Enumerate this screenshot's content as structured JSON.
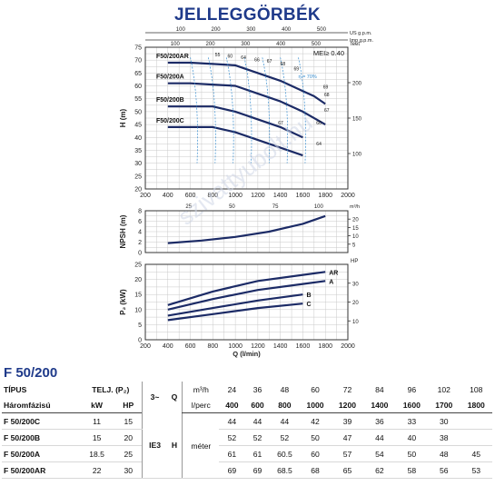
{
  "title": "JELLEGGÖRBÉK",
  "watermark": "szivattyubolt.hu",
  "colors": {
    "curve": "#1c2b66",
    "accent": "#1f3a8a",
    "eff": "#3a8fd0",
    "grid": "#c9c9c9"
  },
  "model_label": "F 50/200",
  "chart_data": [
    {
      "type": "line",
      "name": "H",
      "ylabel": "H (m)",
      "ylabel_right": "feet",
      "top_axis_usgpm_label": "US g.p.m.",
      "top_axis_impgpm_label": "Imp g.p.m.",
      "top_ticks": [
        "100",
        "200",
        "300",
        "400",
        "500"
      ],
      "mei_label": "MEI≥ 0.40",
      "eta_label": "η = 70%",
      "xlim": [
        200,
        2000
      ],
      "ylim": [
        20,
        75
      ],
      "x_ticks": [
        200,
        400,
        600,
        800,
        1000,
        1200,
        1400,
        1600,
        1800,
        2000
      ],
      "y_ticks": [
        20,
        25,
        30,
        35,
        40,
        45,
        50,
        55,
        60,
        65,
        70,
        75
      ],
      "y_right_ticks": [
        100,
        150,
        200
      ],
      "grid": true,
      "series": [
        {
          "name": "F50/200AR",
          "x": [
            400,
            600,
            800,
            1000,
            1200,
            1400,
            1600,
            1700,
            1800
          ],
          "values": [
            69,
            69,
            68.5,
            68,
            65,
            62,
            58,
            56,
            53
          ]
        },
        {
          "name": "F50/200A",
          "x": [
            400,
            600,
            800,
            1000,
            1200,
            1400,
            1600,
            1800
          ],
          "values": [
            61,
            61,
            60.5,
            60,
            57,
            54,
            50,
            45
          ]
        },
        {
          "name": "F50/200B",
          "x": [
            400,
            600,
            800,
            1000,
            1200,
            1400,
            1600
          ],
          "values": [
            52,
            52,
            52,
            50,
            47,
            44,
            40
          ]
        },
        {
          "name": "F50/200C",
          "x": [
            400,
            600,
            800,
            1000,
            1200,
            1400,
            1600
          ],
          "values": [
            44,
            44,
            44,
            42,
            39,
            36,
            33
          ]
        }
      ],
      "eff_labels": [
        "55",
        "60",
        "64",
        "66",
        "67",
        "68",
        "69",
        "69",
        "68",
        "67",
        "67",
        "66",
        "64"
      ]
    },
    {
      "type": "line",
      "name": "NPSH",
      "ylabel": "NPSH (m)",
      "xlabel_top_unit": "m³/h",
      "top_ticks": [
        "25",
        "50",
        "75",
        "100"
      ],
      "xlim": [
        200,
        2000
      ],
      "ylim": [
        0,
        8
      ],
      "y_ticks": [
        0,
        2,
        4,
        6,
        8
      ],
      "y_right_ticks": [
        5,
        10,
        15,
        20
      ],
      "grid": true,
      "series": [
        {
          "name": "NPSH",
          "x": [
            400,
            700,
            1000,
            1300,
            1600,
            1800
          ],
          "values": [
            1.8,
            2.3,
            3.0,
            4.0,
            5.5,
            7.0
          ]
        }
      ]
    },
    {
      "type": "line",
      "name": "P2",
      "ylabel": "P₂ (kW)",
      "ylabel_right": "HP",
      "xlabel": "Q (l/min)",
      "xlim": [
        200,
        2000
      ],
      "ylim": [
        0,
        25
      ],
      "x_ticks": [
        200,
        400,
        600,
        800,
        1000,
        1200,
        1400,
        1600,
        1800,
        2000
      ],
      "y_ticks": [
        0,
        5,
        10,
        15,
        20,
        25
      ],
      "y_right_ticks": [
        10,
        20,
        30
      ],
      "grid": true,
      "series": [
        {
          "name": "AR",
          "x": [
            400,
            800,
            1200,
            1600,
            1800
          ],
          "values": [
            11.5,
            16,
            19.5,
            21.5,
            22.5
          ]
        },
        {
          "name": "A",
          "x": [
            400,
            800,
            1200,
            1600,
            1800
          ],
          "values": [
            10,
            13.5,
            16.5,
            18.5,
            19.5
          ]
        },
        {
          "name": "B",
          "x": [
            400,
            800,
            1200,
            1600
          ],
          "values": [
            8,
            10.5,
            13,
            15
          ]
        },
        {
          "name": "C",
          "x": [
            400,
            800,
            1200,
            1600
          ],
          "values": [
            6.5,
            8.5,
            10.5,
            12
          ]
        }
      ]
    },
    {
      "type": "table",
      "headers": {
        "tipus": "TÍPUS",
        "haromfazisu": "Háromfázisú",
        "telj": "TELJ. (P₂)",
        "kw": "kW",
        "hp": "HP",
        "phase": "3~",
        "q": "Q",
        "ie": "IE3",
        "m3h_unit": "m³/h",
        "lperc_unit": "l/perc",
        "h": "H",
        "meter": "méter"
      },
      "m3h": [
        "24",
        "36",
        "48",
        "60",
        "72",
        "84",
        "96",
        "102",
        "108"
      ],
      "lperc": [
        "400",
        "600",
        "800",
        "1000",
        "1200",
        "1400",
        "1600",
        "1700",
        "1800"
      ],
      "rows": [
        {
          "model": "F 50/200C",
          "kw": "11",
          "hp": "15",
          "h": [
            "44",
            "44",
            "44",
            "42",
            "39",
            "36",
            "33",
            "30",
            ""
          ]
        },
        {
          "model": "F 50/200B",
          "kw": "15",
          "hp": "20",
          "h": [
            "52",
            "52",
            "52",
            "50",
            "47",
            "44",
            "40",
            "38",
            ""
          ]
        },
        {
          "model": "F 50/200A",
          "kw": "18.5",
          "hp": "25",
          "h": [
            "61",
            "61",
            "60.5",
            "60",
            "57",
            "54",
            "50",
            "48",
            "45"
          ]
        },
        {
          "model": "F 50/200AR",
          "kw": "22",
          "hp": "30",
          "h": [
            "69",
            "69",
            "68.5",
            "68",
            "65",
            "62",
            "58",
            "56",
            "53"
          ]
        }
      ]
    }
  ]
}
